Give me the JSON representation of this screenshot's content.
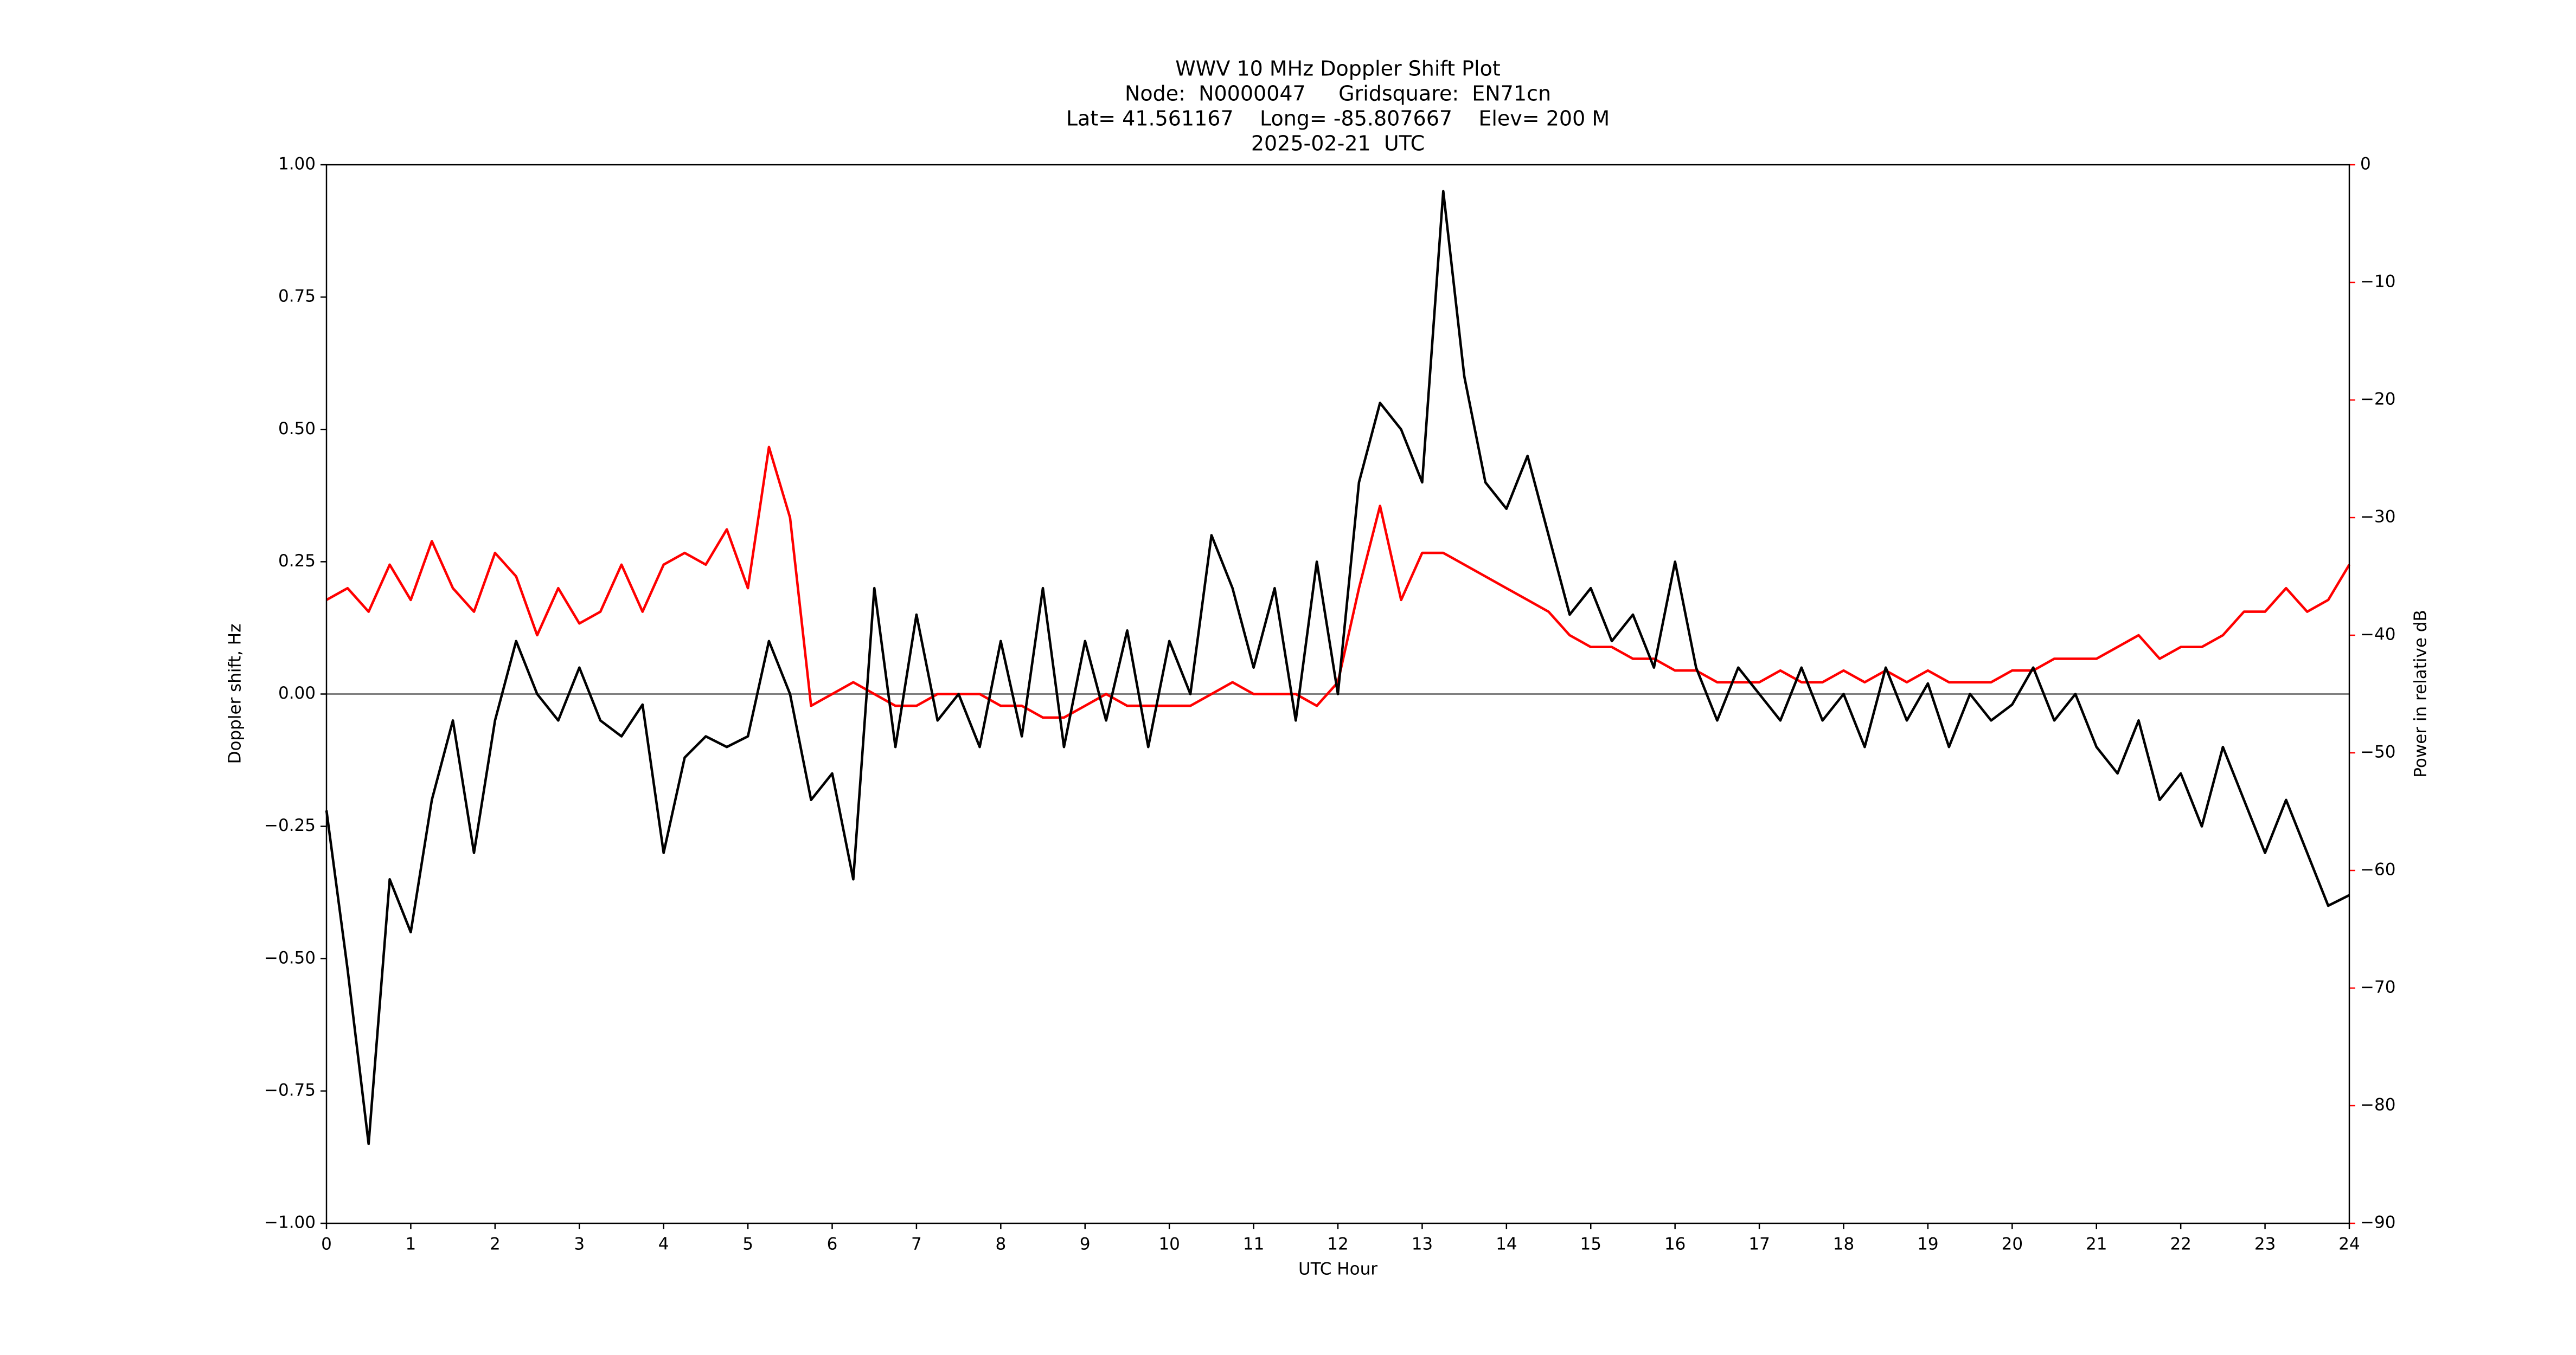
{
  "chart_data": {
    "type": "line",
    "title": [
      "WWV 10 MHz Doppler Shift Plot",
      "Node:  N0000047     Gridsquare:  EN71cn",
      "Lat= 41.561167    Long= -85.807667    Elev= 200 M",
      "2025-02-21  UTC"
    ],
    "x_label": "UTC Hour",
    "y_label": "Doppler shift, Hz",
    "y2_label": "Power in relative dB",
    "y2_color": "#ff0000",
    "x": [
      0,
      0.25,
      0.5,
      0.75,
      1,
      1.25,
      1.5,
      1.75,
      2,
      2.25,
      2.5,
      2.75,
      3,
      3.25,
      3.5,
      3.75,
      4,
      4.25,
      4.5,
      4.75,
      5,
      5.25,
      5.5,
      5.75,
      6,
      6.25,
      6.5,
      6.75,
      7,
      7.25,
      7.5,
      7.75,
      8,
      8.25,
      8.5,
      8.75,
      9,
      9.25,
      9.5,
      9.75,
      10,
      10.25,
      10.5,
      10.75,
      11,
      11.25,
      11.5,
      11.75,
      12,
      12.25,
      12.5,
      12.75,
      13,
      13.25,
      13.5,
      13.75,
      14,
      14.25,
      14.5,
      14.75,
      15,
      15.25,
      15.5,
      15.75,
      16,
      16.25,
      16.5,
      16.75,
      17,
      17.25,
      17.5,
      17.75,
      18,
      18.25,
      18.5,
      18.75,
      19,
      19.25,
      19.5,
      19.75,
      20,
      20.25,
      20.5,
      20.75,
      21,
      21.25,
      21.5,
      21.75,
      22,
      22.25,
      22.5,
      22.75,
      23,
      23.25,
      23.5,
      23.75,
      24
    ],
    "series": [
      {
        "color": "#000000",
        "values": [
          -0.22,
          -0.52,
          -0.85,
          -0.35,
          -0.45,
          -0.2,
          -0.05,
          -0.3,
          -0.05,
          0.1,
          0.0,
          -0.05,
          0.05,
          -0.05,
          -0.08,
          -0.02,
          -0.3,
          -0.12,
          -0.08,
          -0.1,
          -0.08,
          0.1,
          0.0,
          -0.2,
          -0.15,
          -0.35,
          0.2,
          -0.1,
          0.15,
          -0.05,
          0.0,
          -0.1,
          0.1,
          -0.08,
          0.2,
          -0.1,
          0.1,
          -0.05,
          0.12,
          -0.1,
          0.1,
          0.0,
          0.3,
          0.2,
          0.05,
          0.2,
          -0.05,
          0.25,
          0.0,
          0.4,
          0.55,
          0.5,
          0.4,
          0.95,
          0.6,
          0.4,
          0.35,
          0.45,
          0.3,
          0.15,
          0.2,
          0.1,
          0.15,
          0.05,
          0.25,
          0.05,
          -0.05,
          0.05,
          0.0,
          -0.05,
          0.05,
          -0.05,
          0.0,
          -0.1,
          0.05,
          -0.05,
          0.02,
          -0.1,
          0.0,
          -0.05,
          -0.02,
          0.05,
          -0.05,
          0.0,
          -0.1,
          -0.15,
          -0.05,
          -0.2,
          -0.15,
          -0.25,
          -0.1,
          -0.2,
          -0.3,
          -0.2,
          -0.3,
          -0.4,
          -0.38
        ]
      },
      {
        "color": "#ff0000",
        "axis": "y2",
        "values": [
          -37,
          -36,
          -38,
          -34,
          -37,
          -32,
          -36,
          -38,
          -33,
          -35,
          -40,
          -36,
          -39,
          -38,
          -34,
          -38,
          -34,
          -33,
          -34,
          -31,
          -36,
          -24,
          -30,
          -46,
          -45,
          -44,
          -45,
          -46,
          -46,
          -45,
          -45,
          -45,
          -46,
          -46,
          -47,
          -47,
          -46,
          -45,
          -46,
          -46,
          -46,
          -46,
          -45,
          -44,
          -45,
          -45,
          -45,
          -46,
          -44,
          -36,
          -29,
          -37,
          -33,
          -33,
          -34,
          -35,
          -36,
          -37,
          -38,
          -40,
          -41,
          -41,
          -42,
          -42,
          -43,
          -43,
          -44,
          -44,
          -44,
          -43,
          -44,
          -44,
          -43,
          -44,
          -43,
          -44,
          -43,
          -44,
          -44,
          -44,
          -43,
          -43,
          -42,
          -42,
          -42,
          -41,
          -40,
          -42,
          -41,
          -41,
          -40,
          -38,
          -38,
          -36,
          -38,
          -37,
          -34
        ]
      }
    ],
    "xlim": [
      0,
      24
    ],
    "xticks": [
      0,
      1,
      2,
      3,
      4,
      5,
      6,
      7,
      8,
      9,
      10,
      11,
      12,
      13,
      14,
      15,
      16,
      17,
      18,
      19,
      20,
      21,
      22,
      23,
      24
    ],
    "ylim": [
      -1,
      1
    ],
    "yticks": [
      {
        "value": -1,
        "label": "−1.00"
      },
      {
        "value": -0.75,
        "label": "−0.75"
      },
      {
        "value": -0.5,
        "label": "−0.50"
      },
      {
        "value": -0.25,
        "label": "−0.25"
      },
      {
        "value": 0,
        "label": "0.00"
      },
      {
        "value": 0.25,
        "label": "0.25"
      },
      {
        "value": 0.5,
        "label": "0.50"
      },
      {
        "value": 0.75,
        "label": "0.75"
      },
      {
        "value": 1,
        "label": "1.00"
      }
    ],
    "y2lim": [
      -90,
      0
    ],
    "y2ticks": [
      0,
      {
        "value": -10,
        "label": "−10"
      },
      {
        "value": -20,
        "label": "−20"
      },
      {
        "value": -30,
        "label": "−30"
      },
      {
        "value": -40,
        "label": "−40"
      },
      {
        "value": -50,
        "label": "−50"
      },
      {
        "value": -60,
        "label": "−60"
      },
      {
        "value": -70,
        "label": "−70"
      },
      {
        "value": -80,
        "label": "−80"
      },
      {
        "value": -90,
        "label": "−90"
      }
    ],
    "zero_line": 0
  }
}
